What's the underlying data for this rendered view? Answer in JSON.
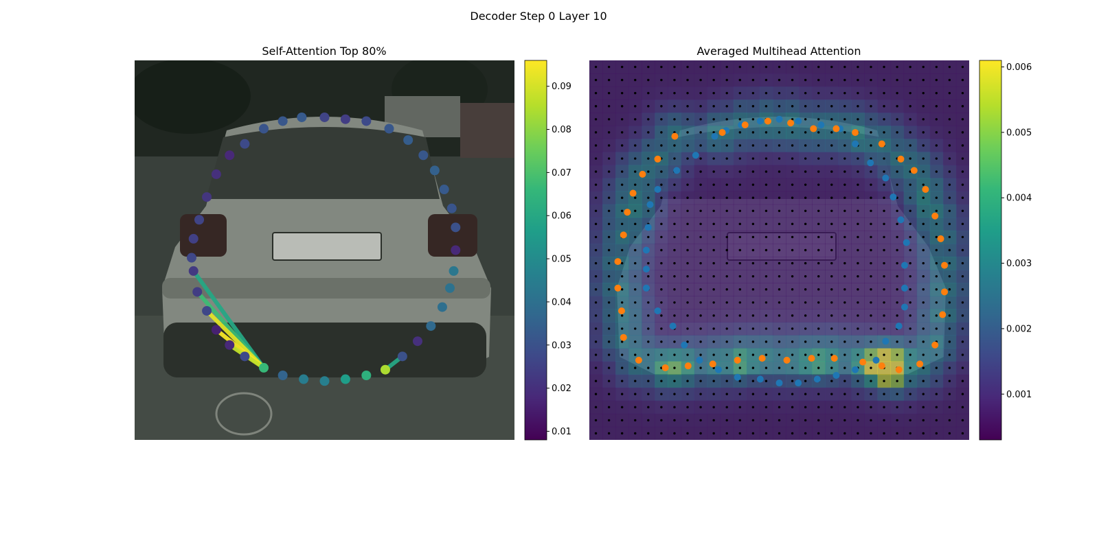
{
  "figure": {
    "title": "Decoder Step 0 Layer 10"
  },
  "colors": {
    "viridis": [
      "#440154",
      "#482878",
      "#3e4989",
      "#31688e",
      "#26828e",
      "#1f9e89",
      "#35b779",
      "#6ece58",
      "#b5de2b",
      "#fde725"
    ],
    "blue_points": "#1f77b4",
    "orange_points": "#ff7f0e",
    "grid_dots": "#000000"
  },
  "chart_data": [
    {
      "type": "scatter",
      "title": "Self-Attention Top 80%",
      "colorbar": {
        "min": 0.008,
        "max": 0.096,
        "ticks": [
          0.01,
          0.02,
          0.03,
          0.04,
          0.05,
          0.06,
          0.07,
          0.08,
          0.09
        ]
      },
      "points": [
        {
          "x": 0.44,
          "y": 0.15,
          "v": 0.033
        },
        {
          "x": 0.39,
          "y": 0.16,
          "v": 0.032
        },
        {
          "x": 0.34,
          "y": 0.18,
          "v": 0.031
        },
        {
          "x": 0.29,
          "y": 0.22,
          "v": 0.028
        },
        {
          "x": 0.25,
          "y": 0.25,
          "v": 0.018
        },
        {
          "x": 0.215,
          "y": 0.3,
          "v": 0.02
        },
        {
          "x": 0.19,
          "y": 0.36,
          "v": 0.022
        },
        {
          "x": 0.17,
          "y": 0.42,
          "v": 0.026
        },
        {
          "x": 0.155,
          "y": 0.47,
          "v": 0.025
        },
        {
          "x": 0.15,
          "y": 0.52,
          "v": 0.027
        },
        {
          "x": 0.155,
          "y": 0.555,
          "v": 0.023
        },
        {
          "x": 0.165,
          "y": 0.61,
          "v": 0.024
        },
        {
          "x": 0.19,
          "y": 0.66,
          "v": 0.027
        },
        {
          "x": 0.215,
          "y": 0.71,
          "v": 0.016
        },
        {
          "x": 0.25,
          "y": 0.75,
          "v": 0.018
        },
        {
          "x": 0.29,
          "y": 0.78,
          "v": 0.028
        },
        {
          "x": 0.34,
          "y": 0.81,
          "v": 0.067
        },
        {
          "x": 0.39,
          "y": 0.83,
          "v": 0.036
        },
        {
          "x": 0.445,
          "y": 0.84,
          "v": 0.045
        },
        {
          "x": 0.5,
          "y": 0.845,
          "v": 0.046
        },
        {
          "x": 0.555,
          "y": 0.84,
          "v": 0.057
        },
        {
          "x": 0.61,
          "y": 0.83,
          "v": 0.064
        },
        {
          "x": 0.66,
          "y": 0.815,
          "v": 0.085
        },
        {
          "x": 0.705,
          "y": 0.78,
          "v": 0.03
        },
        {
          "x": 0.745,
          "y": 0.74,
          "v": 0.02
        },
        {
          "x": 0.78,
          "y": 0.7,
          "v": 0.038
        },
        {
          "x": 0.81,
          "y": 0.65,
          "v": 0.04
        },
        {
          "x": 0.83,
          "y": 0.6,
          "v": 0.041
        },
        {
          "x": 0.84,
          "y": 0.555,
          "v": 0.043
        },
        {
          "x": 0.845,
          "y": 0.5,
          "v": 0.018
        },
        {
          "x": 0.845,
          "y": 0.44,
          "v": 0.03
        },
        {
          "x": 0.835,
          "y": 0.39,
          "v": 0.031
        },
        {
          "x": 0.815,
          "y": 0.34,
          "v": 0.033
        },
        {
          "x": 0.79,
          "y": 0.29,
          "v": 0.035
        },
        {
          "x": 0.76,
          "y": 0.25,
          "v": 0.032
        },
        {
          "x": 0.72,
          "y": 0.21,
          "v": 0.034
        },
        {
          "x": 0.67,
          "y": 0.18,
          "v": 0.032
        },
        {
          "x": 0.61,
          "y": 0.16,
          "v": 0.028
        },
        {
          "x": 0.555,
          "y": 0.155,
          "v": 0.024
        },
        {
          "x": 0.5,
          "y": 0.15,
          "v": 0.026
        }
      ],
      "links": [
        {
          "from": 16,
          "to": 10,
          "v": 0.06
        },
        {
          "from": 16,
          "to": 11,
          "v": 0.068
        },
        {
          "from": 16,
          "to": 12,
          "v": 0.092
        },
        {
          "from": 16,
          "to": 13,
          "v": 0.095
        },
        {
          "from": 16,
          "to": 14,
          "v": 0.088
        },
        {
          "from": 22,
          "to": 23,
          "v": 0.06
        }
      ]
    },
    {
      "type": "heatmap",
      "title": "Averaged Multihead Attention",
      "colorbar": {
        "min": 0.0003,
        "max": 0.0061,
        "ticks": [
          0.001,
          0.002,
          0.003,
          0.004,
          0.005,
          0.006
        ]
      },
      "grid_size": 29,
      "series": [
        {
          "name": "blue",
          "points": [
            [
              0.4,
              0.17
            ],
            [
              0.45,
              0.16
            ],
            [
              0.5,
              0.155
            ],
            [
              0.55,
              0.16
            ],
            [
              0.61,
              0.17
            ],
            [
              0.66,
              0.18
            ],
            [
              0.7,
              0.22
            ],
            [
              0.74,
              0.27
            ],
            [
              0.78,
              0.31
            ],
            [
              0.8,
              0.36
            ],
            [
              0.82,
              0.42
            ],
            [
              0.835,
              0.48
            ],
            [
              0.83,
              0.54
            ],
            [
              0.83,
              0.6
            ],
            [
              0.83,
              0.65
            ],
            [
              0.815,
              0.7
            ],
            [
              0.78,
              0.74
            ],
            [
              0.755,
              0.79
            ],
            [
              0.7,
              0.815
            ],
            [
              0.65,
              0.83
            ],
            [
              0.6,
              0.84
            ],
            [
              0.55,
              0.85
            ],
            [
              0.5,
              0.85
            ],
            [
              0.45,
              0.84
            ],
            [
              0.39,
              0.835
            ],
            [
              0.34,
              0.815
            ],
            [
              0.29,
              0.79
            ],
            [
              0.25,
              0.75
            ],
            [
              0.22,
              0.7
            ],
            [
              0.18,
              0.66
            ],
            [
              0.15,
              0.6
            ],
            [
              0.15,
              0.55
            ],
            [
              0.15,
              0.5
            ],
            [
              0.155,
              0.44
            ],
            [
              0.16,
              0.38
            ],
            [
              0.18,
              0.34
            ],
            [
              0.23,
              0.29
            ],
            [
              0.28,
              0.25
            ],
            [
              0.33,
              0.2
            ],
            [
              0.36,
              0.185
            ]
          ]
        },
        {
          "name": "orange",
          "points": [
            [
              0.35,
              0.19
            ],
            [
              0.41,
              0.17
            ],
            [
              0.47,
              0.16
            ],
            [
              0.53,
              0.165
            ],
            [
              0.59,
              0.18
            ],
            [
              0.65,
              0.18
            ],
            [
              0.7,
              0.19
            ],
            [
              0.77,
              0.22
            ],
            [
              0.82,
              0.26
            ],
            [
              0.855,
              0.29
            ],
            [
              0.885,
              0.34
            ],
            [
              0.91,
              0.41
            ],
            [
              0.925,
              0.47
            ],
            [
              0.935,
              0.54
            ],
            [
              0.935,
              0.61
            ],
            [
              0.93,
              0.67
            ],
            [
              0.91,
              0.75
            ],
            [
              0.87,
              0.8
            ],
            [
              0.815,
              0.815
            ],
            [
              0.77,
              0.805
            ],
            [
              0.72,
              0.795
            ],
            [
              0.645,
              0.785
            ],
            [
              0.585,
              0.785
            ],
            [
              0.52,
              0.79
            ],
            [
              0.455,
              0.785
            ],
            [
              0.39,
              0.79
            ],
            [
              0.325,
              0.8
            ],
            [
              0.26,
              0.805
            ],
            [
              0.2,
              0.81
            ],
            [
              0.13,
              0.79
            ],
            [
              0.09,
              0.73
            ],
            [
              0.085,
              0.66
            ],
            [
              0.075,
              0.6
            ],
            [
              0.075,
              0.53
            ],
            [
              0.09,
              0.46
            ],
            [
              0.1,
              0.4
            ],
            [
              0.115,
              0.35
            ],
            [
              0.14,
              0.3
            ],
            [
              0.18,
              0.26
            ],
            [
              0.225,
              0.2
            ]
          ]
        }
      ],
      "hotspots": [
        {
          "x": 0.22,
          "y": 0.81,
          "v": 0.0045
        },
        {
          "x": 0.4,
          "y": 0.8,
          "v": 0.0039
        },
        {
          "x": 0.6,
          "y": 0.8,
          "v": 0.004
        },
        {
          "x": 0.75,
          "y": 0.8,
          "v": 0.0053
        },
        {
          "x": 0.79,
          "y": 0.83,
          "v": 0.0058
        },
        {
          "x": 0.8,
          "y": 0.78,
          "v": 0.005
        },
        {
          "x": 0.15,
          "y": 0.4,
          "v": 0.0033
        },
        {
          "x": 0.88,
          "y": 0.38,
          "v": 0.0032
        },
        {
          "x": 0.5,
          "y": 0.2,
          "v": 0.003
        },
        {
          "x": 0.3,
          "y": 0.21,
          "v": 0.0031
        },
        {
          "x": 0.71,
          "y": 0.21,
          "v": 0.0031
        }
      ]
    }
  ]
}
